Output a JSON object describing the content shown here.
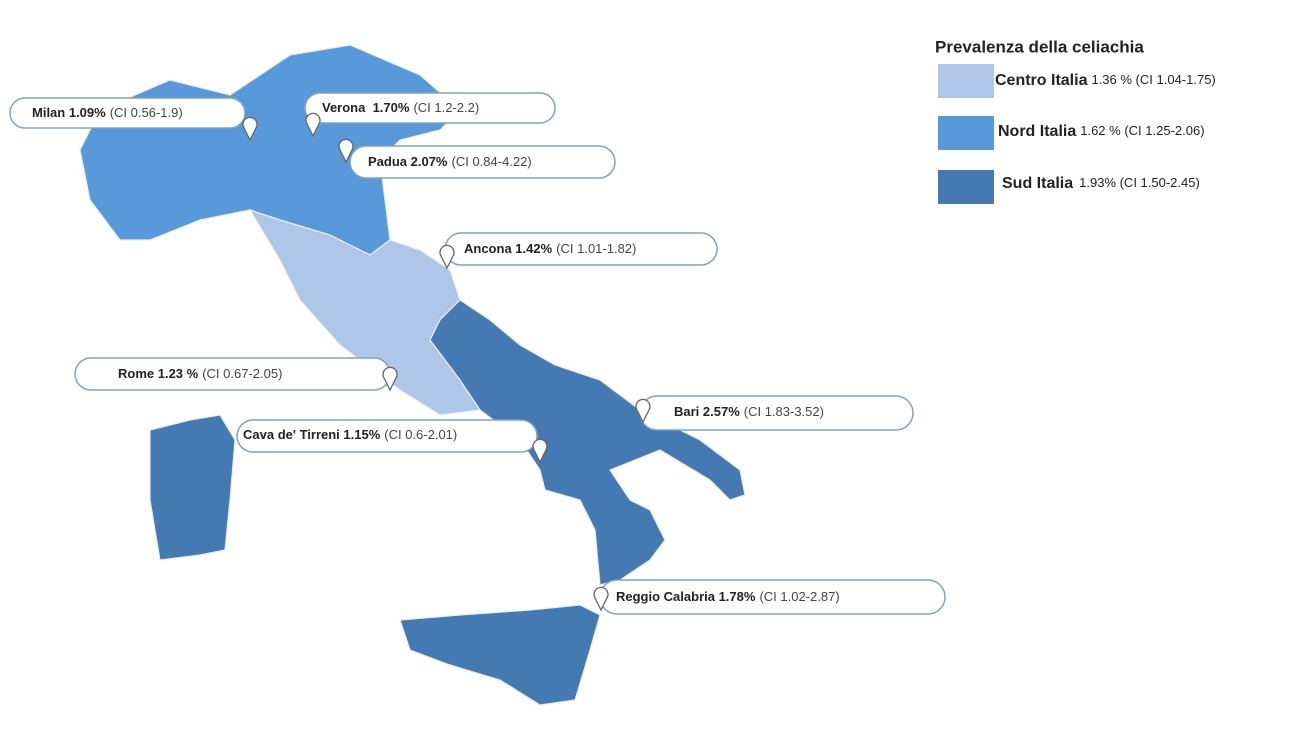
{
  "legend": {
    "title": "Prevalenza della celiachia",
    "items": [
      {
        "name": "Centro Italia",
        "text": "1.36 %  (CI 1.04-1.75)",
        "color": "#aec6e8"
      },
      {
        "name": "Nord Italia",
        "text": "1.62 % (CI 1.25-2.06)",
        "color": "#5899d9"
      },
      {
        "name": "Sud Italia",
        "text": "1.93% (CI 1.50-2.45)",
        "color": "#4479b2"
      }
    ]
  },
  "cities": [
    {
      "label": "Milan 1.09%",
      "ci": "(CI 0.56-1.9)"
    },
    {
      "label": "Verona  1.70%",
      "ci": "(CI 1.2-2.2)"
    },
    {
      "label": "Padua 2.07%",
      "ci": "(CI 0.84-4.22)"
    },
    {
      "label": "Ancona 1.42%",
      "ci": "(CI 1.01-1.82)"
    },
    {
      "label": "Rome 1.23 %",
      "ci": "(CI 0.67-2.05)"
    },
    {
      "label": "Cava de' Tirreni 1.15%",
      "ci": "(CI 0.6-2.01)"
    },
    {
      "label": "Bari 2.57%",
      "ci": "(CI 1.83-3.52)"
    },
    {
      "label": "Reggio Calabria 1.78%",
      "ci": "(CI 1.02-2.87)"
    }
  ]
}
